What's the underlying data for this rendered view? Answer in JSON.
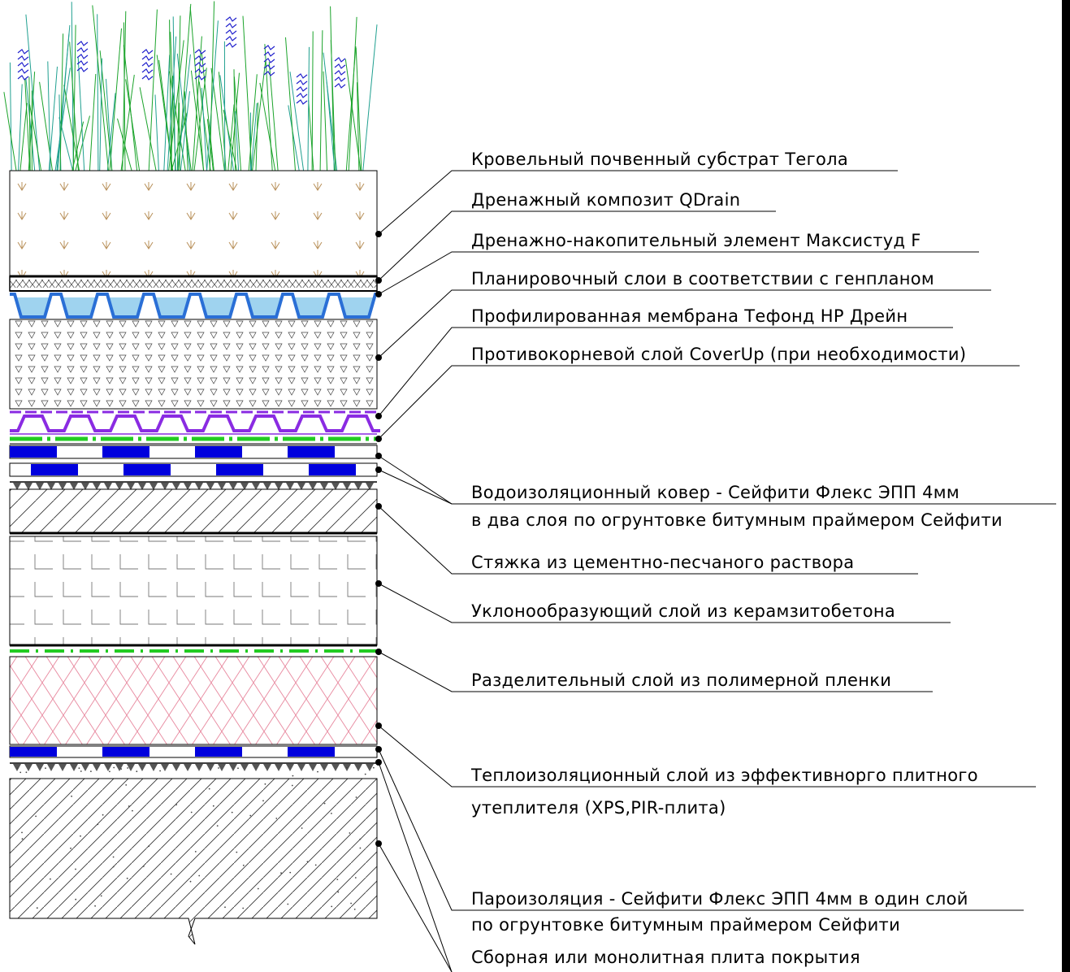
{
  "labels": {
    "l1": "Кровельный почвенный субстрат Тегола",
    "l2": "Дренажный композит QDrain",
    "l3": "Дренажно-накопительный элемент Максистуд F",
    "l4": "Планировочный слои в соответствии с генпланом",
    "l5": "Профилированная мембрана Тефонд HP Дрейн",
    "l6": "Противокорневой слой CoverUp (при необходимости)",
    "l7a": "Водоизоляционный ковер - Сейфити Флекс ЭПП 4мм",
    "l7b": "в два слоя по огрунтовке битумным праймером Сейфити",
    "l8": "Стяжка из цементно-песчаного раствора",
    "l9": "Уклонообразующий слой из керамзитобетона",
    "l10": "Разделительный слой из полимерной пленки",
    "l11a": "Теплоизоляционный слой из эффективнорго плитного",
    "l11b": "утеплителя (XPS,PIR-плита)",
    "l12a": "Пароизоляция - Сейфити Флекс ЭПП 4мм в один слой",
    "l12b": "по огрунтовке битумным праймером Сейфити",
    "l13": "Сборная или монолитная плита покрытия"
  },
  "colors": {
    "soil_marks": "#b8905a",
    "drain_composite": "#2a6fd6",
    "water": "#3fa7e0",
    "profiled_membrane": "#8a2be2",
    "root_barrier": "#22cc22",
    "waterproofing": "#0000dd",
    "insulation_hatch": "#e88aa0",
    "grass": "#1aa32a",
    "grass_teal": "#20a090",
    "flowers": "#2020cc"
  }
}
